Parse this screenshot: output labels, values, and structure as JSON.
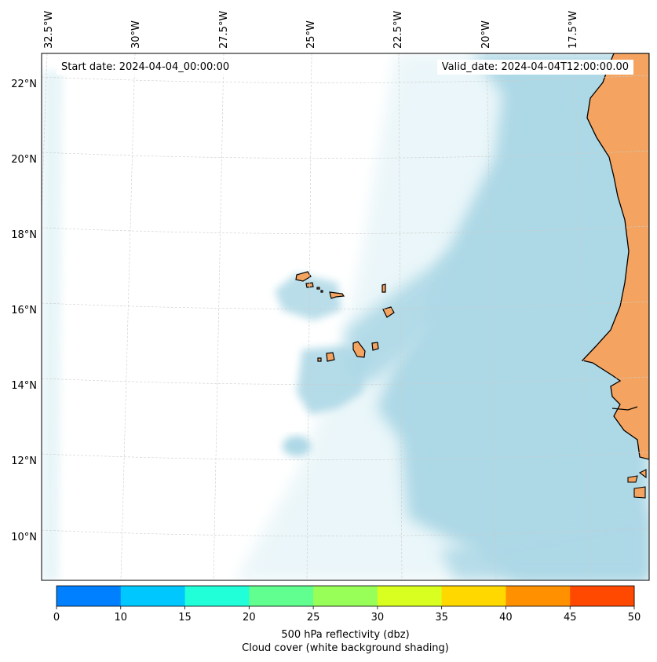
{
  "map": {
    "start_prefix": "Start date: ",
    "start_date": "2024-04-04_00:00:00",
    "valid_prefix": "Valid_date: ",
    "valid_date": "2024-04-04T12:00:00.00",
    "lon_labels": [
      "32.5°W",
      "30°W",
      "27.5°W",
      "25°W",
      "22.5°W",
      "20°W",
      "17.5°W"
    ],
    "lat_labels": [
      "22°N",
      "20°N",
      "18°N",
      "16°N",
      "14°N",
      "12°N",
      "10°N"
    ],
    "colors": {
      "land": "#f4a460",
      "cloud": "#add8e6",
      "grid": "#cccccc",
      "coast": "#000000"
    }
  },
  "colorbar": {
    "ticks": [
      "0",
      "10",
      "15",
      "20",
      "25",
      "30",
      "35",
      "40",
      "45",
      "50"
    ],
    "colors": [
      "#0080ff",
      "#00c8ff",
      "#20ffd8",
      "#60ff90",
      "#98ff58",
      "#d8ff20",
      "#ffd800",
      "#ff9000",
      "#ff4800"
    ],
    "label": "500 hPa reflectivity (dbz)",
    "sublabel": "Cloud cover (white background shading)"
  }
}
